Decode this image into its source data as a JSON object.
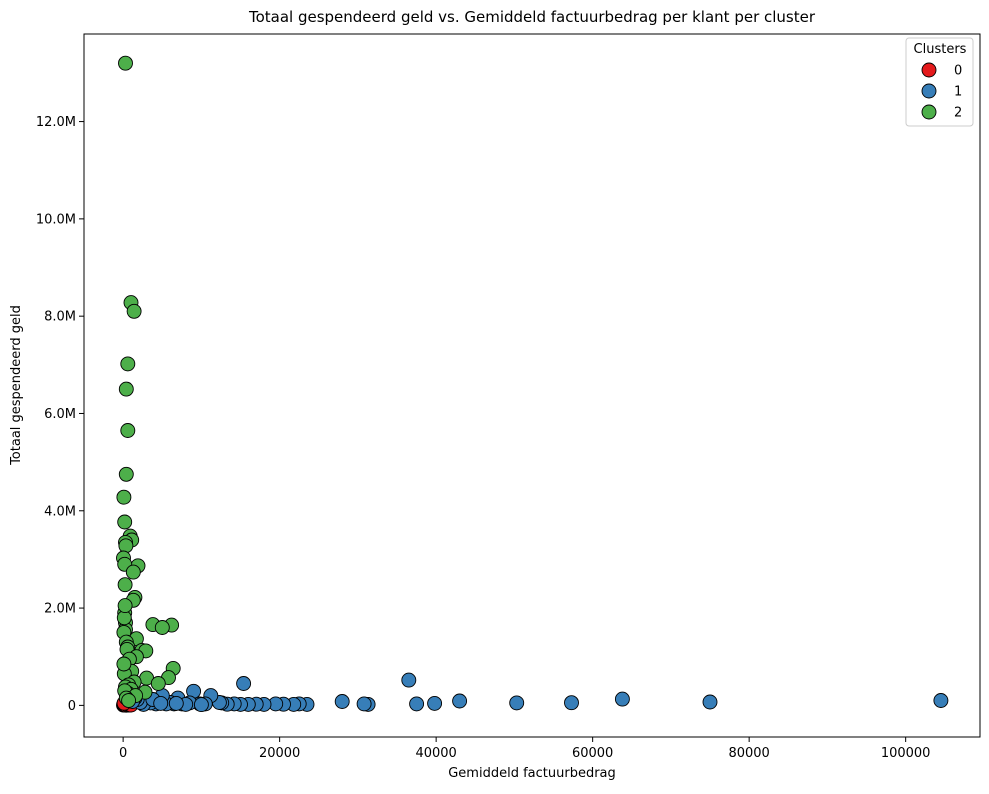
{
  "chart_data": {
    "type": "scatter",
    "title": "Totaal gespendeerd geld vs. Gemiddeld factuurbedrag per klant per cluster",
    "xlabel": "Gemiddeld factuurbedrag",
    "ylabel": "Totaal gespendeerd geld",
    "xlim": [
      -5000,
      109500
    ],
    "ylim": [
      -650000,
      13800000
    ],
    "x_ticks": [
      {
        "value": 0,
        "label": "0"
      },
      {
        "value": 20000,
        "label": "20000"
      },
      {
        "value": 40000,
        "label": "40000"
      },
      {
        "value": 60000,
        "label": "60000"
      },
      {
        "value": 80000,
        "label": "80000"
      },
      {
        "value": 100000,
        "label": "100000"
      }
    ],
    "y_ticks": [
      {
        "value": 0,
        "label": "0"
      },
      {
        "value": 2000000,
        "label": "2.0M"
      },
      {
        "value": 4000000,
        "label": "4.0M"
      },
      {
        "value": 6000000,
        "label": "6.0M"
      },
      {
        "value": 8000000,
        "label": "8.0M"
      },
      {
        "value": 10000000,
        "label": "10.0M"
      },
      {
        "value": 12000000,
        "label": "12.0M"
      }
    ],
    "grid": false,
    "legend": {
      "title": "Clusters",
      "placement": "top-right"
    },
    "series": [
      {
        "name": "0",
        "color": "#e41a1c",
        "points": [
          [
            50,
            5000
          ],
          [
            100,
            15000
          ],
          [
            150,
            30000
          ],
          [
            200,
            8000
          ],
          [
            300,
            20000
          ],
          [
            400,
            12000
          ],
          [
            500,
            25000
          ],
          [
            600,
            6000
          ],
          [
            700,
            18000
          ],
          [
            800,
            9000
          ],
          [
            250,
            40000
          ],
          [
            350,
            3000
          ],
          [
            450,
            35000
          ],
          [
            550,
            14000
          ],
          [
            650,
            28000
          ],
          [
            900,
            11000
          ],
          [
            1000,
            7000
          ],
          [
            120,
            45000
          ]
        ]
      },
      {
        "name": "1",
        "color": "#377eb8",
        "points": [
          [
            104500,
            100000
          ],
          [
            75000,
            70000
          ],
          [
            63800,
            130000
          ],
          [
            57300,
            55000
          ],
          [
            50300,
            50000
          ],
          [
            43000,
            90000
          ],
          [
            39800,
            40000
          ],
          [
            37500,
            30000
          ],
          [
            36500,
            520000
          ],
          [
            31300,
            20000
          ],
          [
            30800,
            30000
          ],
          [
            28000,
            80000
          ],
          [
            23500,
            20000
          ],
          [
            22500,
            30000
          ],
          [
            21800,
            20000
          ],
          [
            20500,
            25000
          ],
          [
            19500,
            30000
          ],
          [
            18000,
            20000
          ],
          [
            17000,
            25000
          ],
          [
            16000,
            20000
          ],
          [
            15400,
            450000
          ],
          [
            15000,
            20000
          ],
          [
            14200,
            30000
          ],
          [
            13300,
            25000
          ],
          [
            12600,
            50000
          ],
          [
            12300,
            60000
          ],
          [
            11200,
            200000
          ],
          [
            10500,
            30000
          ],
          [
            9800,
            30000
          ],
          [
            9000,
            290000
          ],
          [
            8500,
            50000
          ],
          [
            7500,
            30000
          ],
          [
            7000,
            150000
          ],
          [
            6500,
            30000
          ],
          [
            6000,
            60000
          ],
          [
            5500,
            30000
          ],
          [
            5000,
            200000
          ],
          [
            4200,
            30000
          ],
          [
            3500,
            50000
          ],
          [
            3000,
            100000
          ],
          [
            2600,
            20000
          ],
          [
            2200,
            60000
          ],
          [
            1800,
            120000
          ],
          [
            1500,
            150000
          ],
          [
            1200,
            80000
          ],
          [
            8000,
            20000
          ],
          [
            10000,
            15000
          ],
          [
            3800,
            120000
          ],
          [
            4800,
            40000
          ],
          [
            6800,
            40000
          ]
        ]
      },
      {
        "name": "2",
        "color": "#4daf4a",
        "points": [
          [
            300,
            13200000
          ],
          [
            1000,
            8280000
          ],
          [
            1400,
            8100000
          ],
          [
            600,
            7020000
          ],
          [
            400,
            6500000
          ],
          [
            600,
            5650000
          ],
          [
            400,
            4750000
          ],
          [
            100,
            4280000
          ],
          [
            200,
            3770000
          ],
          [
            900,
            3480000
          ],
          [
            1100,
            3400000
          ],
          [
            300,
            3350000
          ],
          [
            350,
            3280000
          ],
          [
            1900,
            2870000
          ],
          [
            50,
            3030000
          ],
          [
            200,
            2900000
          ],
          [
            1300,
            2740000
          ],
          [
            250,
            2480000
          ],
          [
            1500,
            2220000
          ],
          [
            1300,
            2160000
          ],
          [
            200,
            1900000
          ],
          [
            300,
            1700000
          ],
          [
            3800,
            1660000
          ],
          [
            6200,
            1650000
          ],
          [
            5000,
            1600000
          ],
          [
            300,
            1560000
          ],
          [
            100,
            1500000
          ],
          [
            1700,
            1370000
          ],
          [
            400,
            1300000
          ],
          [
            600,
            1200000
          ],
          [
            2400,
            1130000
          ],
          [
            2900,
            1120000
          ],
          [
            500,
            1150000
          ],
          [
            1700,
            1000000
          ],
          [
            800,
            950000
          ],
          [
            6400,
            760000
          ],
          [
            1100,
            700000
          ],
          [
            150,
            650000
          ],
          [
            5800,
            570000
          ],
          [
            3000,
            560000
          ],
          [
            1400,
            480000
          ],
          [
            4500,
            450000
          ],
          [
            700,
            420000
          ],
          [
            300,
            380000
          ],
          [
            1000,
            330000
          ],
          [
            2800,
            270000
          ],
          [
            600,
            250000
          ],
          [
            200,
            300000
          ],
          [
            1600,
            200000
          ],
          [
            400,
            150000
          ],
          [
            700,
            100000
          ],
          [
            150,
            1800000
          ],
          [
            250,
            2050000
          ],
          [
            100,
            850000
          ]
        ]
      }
    ]
  }
}
